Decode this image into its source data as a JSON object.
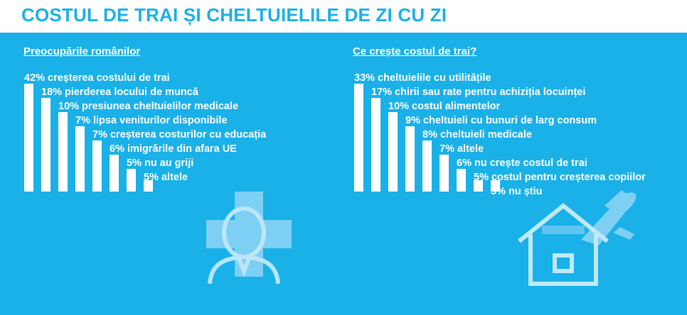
{
  "page": {
    "title": "COSTUL DE TRAI ȘI CHELTUIELILE DE ZI CU ZI",
    "accent_color": "#1ab0e8",
    "bar_color": "#ffffff",
    "icon_color": "#8fd6f4"
  },
  "chart_data": [
    {
      "type": "bar",
      "title": "Preocupările românilor",
      "categories": [
        "creșterea costului de trai",
        "pierderea locului de muncă",
        "presiunea cheltuielilor medicale",
        "lipsa veniturilor disponibile",
        "creșterea costurilor cu educația",
        "imigrările din afara UE",
        "nu au griji",
        "altele"
      ],
      "values": [
        42,
        18,
        10,
        7,
        7,
        6,
        5,
        5
      ],
      "labels": [
        "42% creșterea costului de trai",
        "18% pierderea locului de muncă",
        "10% presiunea cheltuielilor medicale",
        "7% lipsa veniturilor disponibile",
        "7% creșterea costurilor cu educația",
        "6% imigrările din afara UE",
        "5% nu au griji",
        "5% altele"
      ],
      "unit": "%",
      "grid": false,
      "icon": "doctor-medical-cross-icon"
    },
    {
      "type": "bar",
      "title": "Ce crește costul de trai?",
      "categories": [
        "cheltuielile cu utilitățile",
        "chirii sau rate pentru achiziția locuinței",
        "costul alimentelor",
        "cheltuieli cu bunuri de larg consum",
        "cheltuieli medicale",
        "altele",
        "nu crește costul de trai",
        "costul pentru creșterea copiilor",
        "nu știu"
      ],
      "values": [
        33,
        17,
        10,
        9,
        8,
        7,
        6,
        5,
        5
      ],
      "labels": [
        "33% cheltuielile cu utilitățile",
        "17% chirii sau rate pentru achiziția locuinței",
        "10% costul alimentelor",
        "9% cheltuieli cu bunuri de larg consum",
        "8% cheltuieli medicale",
        "7% altele",
        "6% nu crește costul de trai",
        "5% costul pentru creșterea copiilor",
        "5% nu știu"
      ],
      "unit": "%",
      "grid": false,
      "icon": "house-airplane-icon"
    }
  ]
}
